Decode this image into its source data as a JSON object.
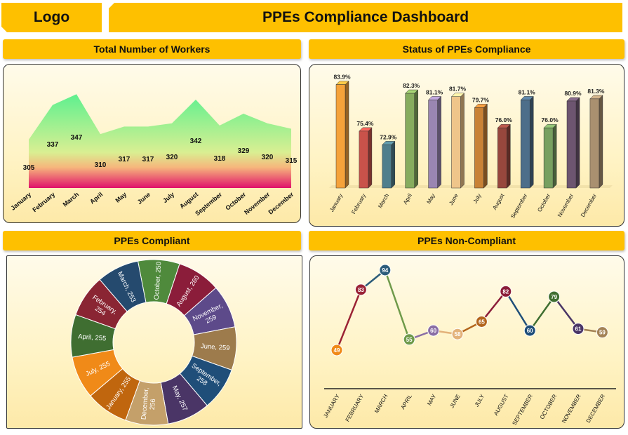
{
  "header": {
    "logo_label": "Logo",
    "title": "PPEs Compliance Dashboard"
  },
  "sections": {
    "workers": "Total Number of Workers",
    "status": "Status of PPEs Compliance",
    "compliant": "PPEs Compliant",
    "noncompliant": "PPEs Non-Compliant"
  },
  "chart_data": [
    {
      "type": "area",
      "id": "workers",
      "categories": [
        "January",
        "February",
        "March",
        "April",
        "May",
        "June",
        "July",
        "August",
        "September",
        "October",
        "November",
        "December"
      ],
      "values": [
        305,
        337,
        347,
        310,
        317,
        317,
        320,
        342,
        318,
        329,
        320,
        315
      ],
      "ylim": [
        260,
        355
      ],
      "colors": {
        "top": "#5ef08f",
        "mid": "#d9ef92",
        "bottom": "#e0106a"
      }
    },
    {
      "type": "bar",
      "id": "status",
      "categories": [
        "January",
        "February",
        "March",
        "April",
        "May",
        "June",
        "July",
        "August",
        "September",
        "October",
        "November",
        "December"
      ],
      "values": [
        83.9,
        75.4,
        72.9,
        82.3,
        81.1,
        81.7,
        79.7,
        76.0,
        81.1,
        76.0,
        80.9,
        81.3
      ],
      "labels": [
        "83.9%",
        "75.4%",
        "72.9%",
        "82.3%",
        "81.1%",
        "81.7%",
        "79.7%",
        "76.0%",
        "81.1%",
        "76.0%",
        "80.9%",
        "81.3%"
      ],
      "ylim": [
        65,
        85
      ],
      "colors": [
        "#f5a23a",
        "#c9524a",
        "#4f7e8c",
        "#86ac5e",
        "#9a86b2",
        "#efc58a",
        "#c88236",
        "#97473d",
        "#4d6e8a",
        "#77a060",
        "#6d5570",
        "#a99070"
      ]
    },
    {
      "type": "pie",
      "id": "compliant",
      "donut": true,
      "slices": [
        {
          "label": "October, 250",
          "value": 250,
          "color": "#4f8a3c"
        },
        {
          "label": "August, 260",
          "value": 260,
          "color": "#8b1d3a"
        },
        {
          "label": "November, 259",
          "value": 259,
          "color": "#5d4a8a"
        },
        {
          "label": "June, 259",
          "value": 259,
          "color": "#9d7b4c"
        },
        {
          "label": "September, 258",
          "value": 258,
          "color": "#1f4e79"
        },
        {
          "label": "May, 257",
          "value": 257,
          "color": "#4a3566"
        },
        {
          "label": "December, 256",
          "value": 256,
          "color": "#c4a06a"
        },
        {
          "label": "January, 255",
          "value": 255,
          "color": "#c0660e"
        },
        {
          "label": "July, 255",
          "value": 255,
          "color": "#f08a18"
        },
        {
          "label": "April, 255",
          "value": 255,
          "color": "#3f6e31"
        },
        {
          "label": "February, 254",
          "value": 254,
          "color": "#8a2533"
        },
        {
          "label": "March, 253",
          "value": 253,
          "color": "#254a6e"
        }
      ]
    },
    {
      "type": "line",
      "id": "noncompliant",
      "categories": [
        "JANUARY",
        "FEBRUARY",
        "MARCH",
        "APRIL",
        "MAY",
        "JUNE",
        "JULY",
        "AUGUST",
        "SEPTEMBER",
        "OCTOBER",
        "NOVEMBER",
        "DECEMBER"
      ],
      "values": [
        49,
        83,
        94,
        55,
        60,
        58,
        65,
        82,
        60,
        79,
        61,
        59
      ],
      "ylim": [
        0,
        100
      ],
      "colors": [
        "#f08a18",
        "#9b2335",
        "#2c5c7a",
        "#6f9a4a",
        "#8a6ea5",
        "#e3b27a",
        "#b3651c",
        "#8b1d3a",
        "#1f4e79",
        "#3f6e31",
        "#4a3566",
        "#a38255"
      ]
    }
  ]
}
